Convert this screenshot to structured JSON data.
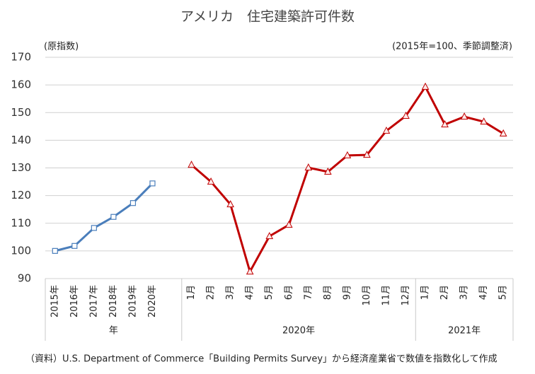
{
  "chart_data": {
    "type": "line",
    "title": "アメリカ　住宅建築許可件数",
    "y_label": "(原指数)",
    "note": "(2015年=100、季節調整済)",
    "source": "（資料）U.S. Department of Commerce「Building Permits Survey」から経済産業省で数値を指数化して作成",
    "categories": [
      "2015年",
      "2016年",
      "2017年",
      "2018年",
      "2019年",
      "2020年",
      null,
      "1月",
      "2月",
      "3月",
      "4月",
      "5月",
      "6月",
      "7月",
      "8月",
      "9月",
      "10月",
      "11月",
      "12月",
      "1月",
      "2月",
      "3月",
      "4月",
      "5月"
    ],
    "groups": [
      {
        "label": "年",
        "size": 7
      },
      {
        "label": "2020年",
        "size": 12
      },
      {
        "label": "2021年",
        "size": 5
      }
    ],
    "series": [
      {
        "color": "#4a7ebb",
        "marker": "square",
        "values": [
          100,
          101.8,
          108.3,
          112.3,
          117.3,
          124.4,
          null,
          null,
          null,
          null,
          null,
          null,
          null,
          null,
          null,
          null,
          null,
          null,
          null,
          null,
          null,
          null,
          null,
          null
        ]
      },
      {
        "color": "#c00000",
        "marker": "triangle",
        "values": [
          null,
          null,
          null,
          null,
          null,
          null,
          null,
          131.1,
          125,
          116.8,
          92.5,
          105.3,
          109.4,
          130.1,
          128.6,
          134.5,
          134.7,
          143.4,
          148.8,
          159.3,
          145.7,
          148.5,
          146.7,
          142.4
        ]
      }
    ],
    "ylim": [
      90,
      170
    ],
    "yticks": [
      90,
      100,
      110,
      120,
      130,
      140,
      150,
      160,
      170
    ],
    "grid": true
  }
}
